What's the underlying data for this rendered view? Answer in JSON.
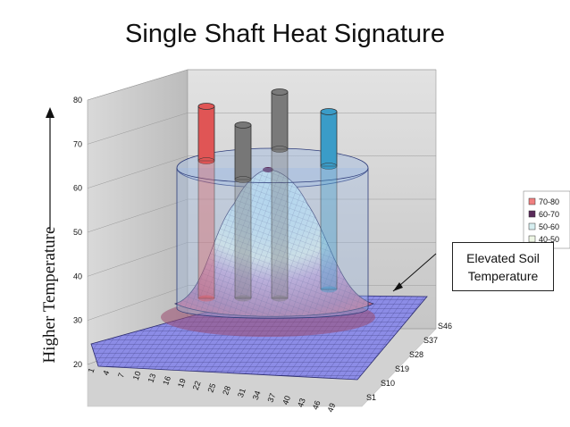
{
  "title": "Single Shaft Heat Signature",
  "side_label": "Higher Temperature",
  "callout": {
    "line1": "Elevated Soil",
    "line2": "Temperature"
  },
  "chart_data": {
    "type": "surface",
    "title": "Single Shaft Heat Signature",
    "z_axis": {
      "ticks": [
        "20",
        "30",
        "40",
        "50",
        "60",
        "70",
        "80"
      ],
      "range": [
        20,
        80
      ]
    },
    "x_axis": {
      "ticks": [
        "1",
        "4",
        "7",
        "10",
        "13",
        "16",
        "19",
        "22",
        "25",
        "28",
        "31",
        "34",
        "37",
        "40",
        "43",
        "46",
        "49"
      ]
    },
    "y_axis": {
      "ticks": [
        "S1",
        "S10",
        "S19",
        "S28",
        "S37",
        "S46"
      ]
    },
    "legend": [
      {
        "label": "70-80",
        "color": "#f08080"
      },
      {
        "label": "60-70",
        "color": "#5a2a5a"
      },
      {
        "label": "50-60",
        "color": "#d6eef0"
      },
      {
        "label": "40-50",
        "color": "#eef6e4"
      }
    ],
    "legend_placement": "right",
    "grid": true,
    "surface_peak": 68,
    "surface_base": 25,
    "colors": {
      "band_70_80": "#f08080",
      "band_60_70": "#b07aa8",
      "band_50_60": "#dff0ec",
      "band_40_50": "#bfe3f2",
      "band_30_40": "#c9bde8",
      "band_20_30": "#8f8fe6",
      "wall": "#cfcfcf",
      "floor": "#a8a8a8"
    },
    "shafts": [
      {
        "name": "red",
        "color": "#e05555"
      },
      {
        "name": "gray-left",
        "color": "#777777"
      },
      {
        "name": "gray-center",
        "color": "#7a7a7a"
      },
      {
        "name": "blue",
        "color": "#3a9cc8"
      }
    ]
  }
}
